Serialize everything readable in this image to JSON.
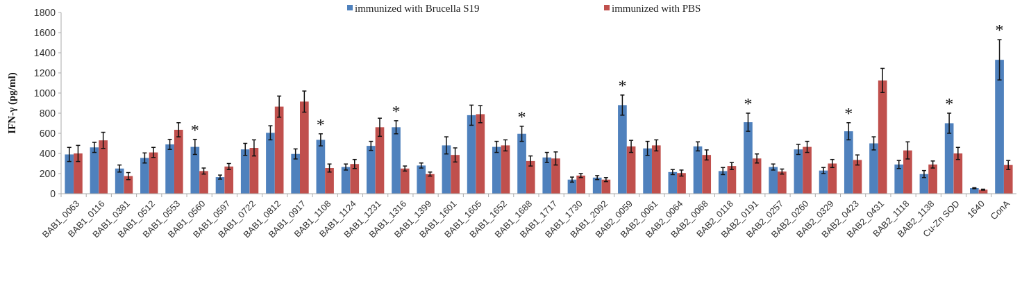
{
  "chart_data": {
    "type": "bar",
    "ylabel": "IFN-γ (pg/ml)",
    "categories": [
      "BAB1_0063",
      "BAB1_0116",
      "BAB1_0381",
      "BAB1_0512",
      "BAB1_0553",
      "BAB1_0560",
      "BAB1_0597",
      "BAB1_0722",
      "BAB1_0812",
      "BAB1_0917",
      "BAB1_1108",
      "BAB1_1124",
      "BAB1_1231",
      "BAB1_1316",
      "BAB1_1399",
      "BAB1_1601",
      "BAB1_1605",
      "BAB1_1652",
      "BAB1_1688",
      "BAB1_1717",
      "BAB1_1730",
      "BAB1_2092",
      "BAB2_0059",
      "BAB2_0061",
      "BAB2_0064",
      "BAB2_0068",
      "BAB2_0118",
      "BAB2_0191",
      "BAB2_0257",
      "BAB2_0260",
      "BAB2_0329",
      "BAB2_0423",
      "BAB2_0431",
      "BAB2_1118",
      "BAB2_1138",
      "Cu-Zn SOD",
      "1640",
      "ConA"
    ],
    "series": [
      {
        "name": "immunized with Brucella S19",
        "color": "#4f81bd",
        "values": [
          390,
          460,
          250,
          355,
          490,
          465,
          165,
          440,
          605,
          395,
          535,
          265,
          475,
          660,
          280,
          480,
          780,
          465,
          595,
          360,
          140,
          160,
          880,
          450,
          215,
          470,
          225,
          710,
          265,
          440,
          230,
          620,
          500,
          290,
          195,
          700,
          55,
          1330
        ],
        "errors": [
          70,
          50,
          35,
          50,
          50,
          75,
          20,
          60,
          70,
          50,
          60,
          30,
          45,
          65,
          25,
          85,
          100,
          55,
          75,
          50,
          25,
          20,
          100,
          70,
          25,
          45,
          35,
          90,
          30,
          50,
          30,
          85,
          65,
          40,
          35,
          100,
          5,
          200
        ],
        "value_labels": [
          null,
          null,
          null,
          null,
          null,
          "*",
          null,
          null,
          null,
          null,
          "*",
          null,
          null,
          "*",
          null,
          null,
          null,
          null,
          "*",
          null,
          null,
          null,
          "*",
          null,
          null,
          null,
          null,
          "*",
          null,
          null,
          null,
          "*",
          null,
          null,
          null,
          "*",
          null,
          "*"
        ]
      },
      {
        "name": "immunized with PBS",
        "color": "#c0504d",
        "values": [
          400,
          530,
          175,
          410,
          635,
          225,
          270,
          455,
          865,
          915,
          255,
          295,
          660,
          250,
          195,
          385,
          790,
          480,
          325,
          350,
          180,
          140,
          470,
          480,
          205,
          385,
          275,
          350,
          220,
          465,
          300,
          335,
          1125,
          430,
          290,
          400,
          40,
          285
        ],
        "errors": [
          80,
          80,
          35,
          50,
          70,
          30,
          30,
          80,
          105,
          105,
          40,
          45,
          90,
          25,
          20,
          70,
          85,
          55,
          50,
          65,
          20,
          20,
          60,
          55,
          30,
          50,
          35,
          45,
          25,
          55,
          40,
          50,
          120,
          85,
          35,
          60,
          5,
          45
        ]
      }
    ],
    "ylim": [
      0,
      1800
    ],
    "yticks": [
      0,
      200,
      400,
      600,
      800,
      1000,
      1200,
      1400,
      1600,
      1800
    ],
    "grid": false,
    "legend": "top"
  }
}
